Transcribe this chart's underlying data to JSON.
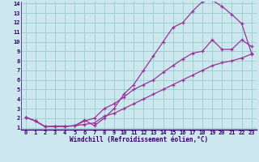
{
  "xlabel": "Windchill (Refroidissement éolien,°C)",
  "bg_color": "#cce8ee",
  "line_color": "#993399",
  "grid_color": "#99cccc",
  "axis_color": "#330066",
  "xlim": [
    -0.5,
    23.5
  ],
  "ylim": [
    0.8,
    14.2
  ],
  "xticks": [
    0,
    1,
    2,
    3,
    4,
    5,
    6,
    7,
    8,
    9,
    10,
    11,
    12,
    13,
    14,
    15,
    16,
    17,
    18,
    19,
    20,
    21,
    22,
    23
  ],
  "yticks": [
    1,
    2,
    3,
    4,
    5,
    6,
    7,
    8,
    9,
    10,
    11,
    12,
    13,
    14
  ],
  "line1_x": [
    0,
    1,
    2,
    3,
    4,
    5,
    6,
    7,
    8,
    9,
    10,
    11,
    12,
    13,
    14,
    15,
    16,
    17,
    18,
    19,
    20,
    21,
    22,
    23
  ],
  "line1_y": [
    2.1,
    1.7,
    1.1,
    1.15,
    1.15,
    1.2,
    1.8,
    1.2,
    2.0,
    3.0,
    4.5,
    5.5,
    7.0,
    8.5,
    10.0,
    11.5,
    12.0,
    13.2,
    14.2,
    14.35,
    13.7,
    12.85,
    11.9,
    8.8
  ],
  "line2_x": [
    0,
    1,
    2,
    3,
    4,
    5,
    6,
    7,
    8,
    9,
    10,
    11,
    12,
    13,
    14,
    15,
    16,
    17,
    18,
    19,
    20,
    21,
    22,
    23
  ],
  "line2_y": [
    2.1,
    1.7,
    1.1,
    1.15,
    1.15,
    1.2,
    1.7,
    2.0,
    3.0,
    3.5,
    4.2,
    5.0,
    5.5,
    6.0,
    6.8,
    7.5,
    8.2,
    8.8,
    9.0,
    10.2,
    9.2,
    9.2,
    10.2,
    9.5
  ],
  "line3_x": [
    0,
    1,
    2,
    3,
    4,
    5,
    6,
    7,
    8,
    9,
    10,
    11,
    12,
    13,
    14,
    15,
    16,
    17,
    18,
    19,
    20,
    21,
    22,
    23
  ],
  "line3_y": [
    2.1,
    1.7,
    1.1,
    1.15,
    1.15,
    1.2,
    1.35,
    1.5,
    2.2,
    2.5,
    3.0,
    3.5,
    4.0,
    4.5,
    5.0,
    5.5,
    6.0,
    6.5,
    7.0,
    7.5,
    7.8,
    8.0,
    8.3,
    8.7
  ]
}
